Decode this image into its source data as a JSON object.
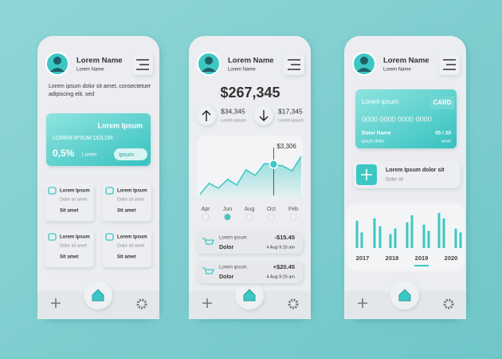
{
  "phone1": {
    "name": "Lorem Name",
    "subname": "Lorem Name",
    "intro": [
      "Lorem ipsum dolor sit amet, consectetuer",
      "adipiscing elit, sed"
    ],
    "card": {
      "title": "Lorem Ipsum",
      "subtitle": "LOREM IPSUM DOLOR",
      "rate": "0,5%",
      "rate_label": "Lorem",
      "button": "Ipsum"
    },
    "tiles": [
      {
        "title": "Lorem Ipsum",
        "subtitle": "Dolor sit amet",
        "footer": "Sit amet"
      },
      {
        "title": "Lorem Ipsum",
        "subtitle": "Dolor sit amet",
        "footer": "Sit amet"
      },
      {
        "title": "Lorem Ipsum",
        "subtitle": "Dolor sit amet",
        "footer": "Sit amet"
      },
      {
        "title": "Lorem Ipsum",
        "subtitle": "Dolor sit amet",
        "footer": "Sit amet"
      }
    ]
  },
  "phone2": {
    "name": "Lorem Name",
    "subname": "Lorem Name",
    "balance": "$267,345",
    "income": {
      "amount": "$34,345",
      "label": "Lorem ipsum"
    },
    "expense": {
      "amount": "$17,345",
      "label": "Lorem ipsum"
    },
    "chart": {
      "type": "line",
      "color": "#3cc7c4",
      "values": [
        9,
        29,
        20,
        36,
        26,
        53,
        43,
        64,
        63,
        60,
        51,
        77
      ],
      "value_labels": [
        null,
        null,
        null,
        null,
        null,
        null,
        null,
        null,
        "$3,306",
        null,
        null,
        null
      ],
      "ylim": [
        0,
        100
      ],
      "months": [
        "Apr",
        "Jun",
        "Aug",
        "Oct",
        "Feb"
      ]
    },
    "transactions": [
      {
        "title": "Lorem ipsum",
        "name": "Dolor",
        "amount": "-$15.45",
        "date": "4 Aug  9:15 am"
      },
      {
        "title": "Lorem ipsum",
        "name": "Dolor",
        "amount": "+$20.45",
        "date": "4 Aug  9:15 am"
      }
    ]
  },
  "phone3": {
    "name": "Lorem Name",
    "subname": "Lorem Name",
    "card": {
      "title": "Lorem ipsum",
      "badge": "CARD",
      "number": "0000 0000 0000 0000",
      "holder": "Dolor Name",
      "expiry": "05 / 20",
      "holder_label": "ipsum dolor",
      "expiry_label": "amet"
    },
    "action": {
      "title": "Lorem Ipsum dolor sit",
      "subtitle": "Dolor sit"
    },
    "chart": {
      "type": "bar",
      "color": "#3cc7c4",
      "values": [
        35,
        20,
        38,
        28,
        18,
        25,
        33,
        42,
        30,
        22,
        45,
        38,
        25,
        20
      ],
      "ylim": [
        0,
        50
      ],
      "years": [
        "2017",
        "2018",
        "2019",
        "2020"
      ]
    }
  }
}
